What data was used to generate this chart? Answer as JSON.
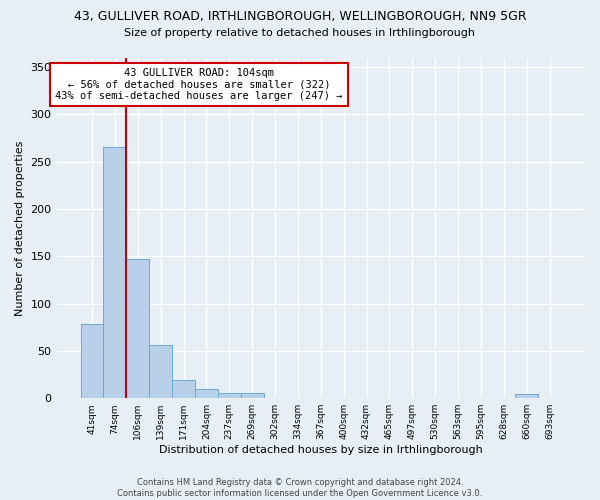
{
  "title": "43, GULLIVER ROAD, IRTHLINGBOROUGH, WELLINGBOROUGH, NN9 5GR",
  "subtitle": "Size of property relative to detached houses in Irthlingborough",
  "xlabel": "Distribution of detached houses by size in Irthlingborough",
  "ylabel": "Number of detached properties",
  "bar_values": [
    78,
    265,
    147,
    56,
    19,
    10,
    5,
    5,
    0,
    0,
    0,
    0,
    0,
    0,
    0,
    0,
    0,
    0,
    0,
    4,
    0
  ],
  "bar_labels": [
    "41sqm",
    "74sqm",
    "106sqm",
    "139sqm",
    "171sqm",
    "204sqm",
    "237sqm",
    "269sqm",
    "302sqm",
    "334sqm",
    "367sqm",
    "400sqm",
    "432sqm",
    "465sqm",
    "497sqm",
    "530sqm",
    "563sqm",
    "595sqm",
    "628sqm",
    "660sqm",
    "693sqm"
  ],
  "bar_color": "#b8d0ea",
  "bar_edge_color": "#6aaad4",
  "vline_color": "#cc0000",
  "annotation_line1": "43 GULLIVER ROAD: 104sqm",
  "annotation_line2": "← 56% of detached houses are smaller (322)",
  "annotation_line3": "43% of semi-detached houses are larger (247) →",
  "annotation_box_color": "#ffffff",
  "annotation_border_color": "#cc0000",
  "ylim": [
    0,
    360
  ],
  "yticks": [
    0,
    50,
    100,
    150,
    200,
    250,
    300,
    350
  ],
  "footer": "Contains HM Land Registry data © Crown copyright and database right 2024.\nContains public sector information licensed under the Open Government Licence v3.0.",
  "bg_color": "#e8eef5",
  "plot_bg_color": "#e8eef5",
  "grid_color": "#ffffff",
  "title_fontsize": 9,
  "subtitle_fontsize": 8,
  "ylabel_fontsize": 8,
  "xlabel_fontsize": 8,
  "tick_fontsize": 6.5,
  "footer_fontsize": 6
}
